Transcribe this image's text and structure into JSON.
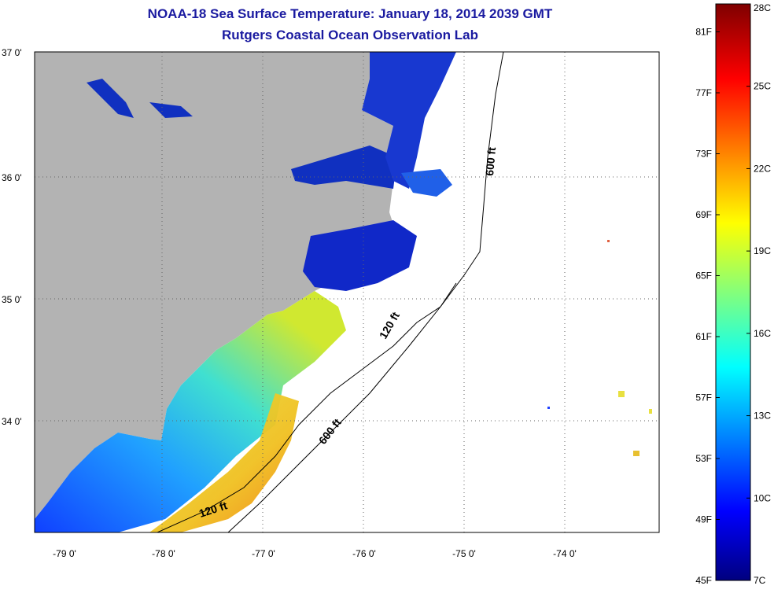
{
  "header": {
    "title": "NOAA-18 Sea Surface Temperature:  January 18, 2014 2039 GMT",
    "subtitle": "Rutgers Coastal Ocean Observation Lab"
  },
  "axes": {
    "lat_labels": [
      "37 0'",
      "36 0'",
      "35 0'",
      "34 0'"
    ],
    "lon_labels": [
      "-79 0'",
      "-78 0'",
      "-77 0'",
      "-76 0'",
      "-75 0'",
      "-74 0'"
    ]
  },
  "contours": {
    "label_600_north": "600 ft",
    "label_120_mid": "120 ft",
    "label_600_south": "600 ft",
    "label_120_south": "120 ft"
  },
  "colorbar": {
    "fahrenheit": [
      "81F",
      "77F",
      "73F",
      "69F",
      "65F",
      "61F",
      "57F",
      "53F",
      "49F",
      "45F"
    ],
    "celsius": [
      "28C",
      "25C",
      "22C",
      "19C",
      "16C",
      "13C",
      "10C",
      "7C"
    ]
  },
  "colors": {
    "land": "#b3b3b3",
    "cold": "#00008f",
    "mid": "#00e5ff",
    "warm": "#ffff00",
    "hot": "#8b0000",
    "title": "#1a1aa0"
  }
}
